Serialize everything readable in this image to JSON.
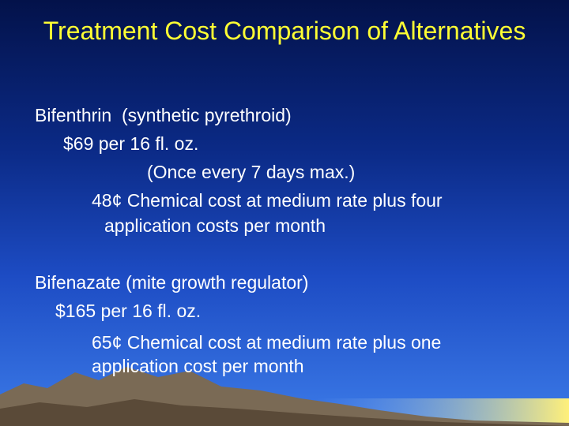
{
  "title": "Treatment Cost Comparison of Alternatives",
  "items": [
    {
      "name": "Bifenthrin  (synthetic pyrethroid)",
      "price": "$69 per 16 fl. oz.",
      "note": "(Once every 7 days max.)",
      "cost_line1": "48¢ Chemical cost at medium rate plus four",
      "cost_line2": "application costs per month"
    },
    {
      "name": "Bifenazate (mite growth regulator)",
      "price": "$165 per 16 fl. oz.",
      "cost_line1": "65¢ Chemical cost at medium rate plus one",
      "cost_line2": "application cost per month"
    }
  ]
}
